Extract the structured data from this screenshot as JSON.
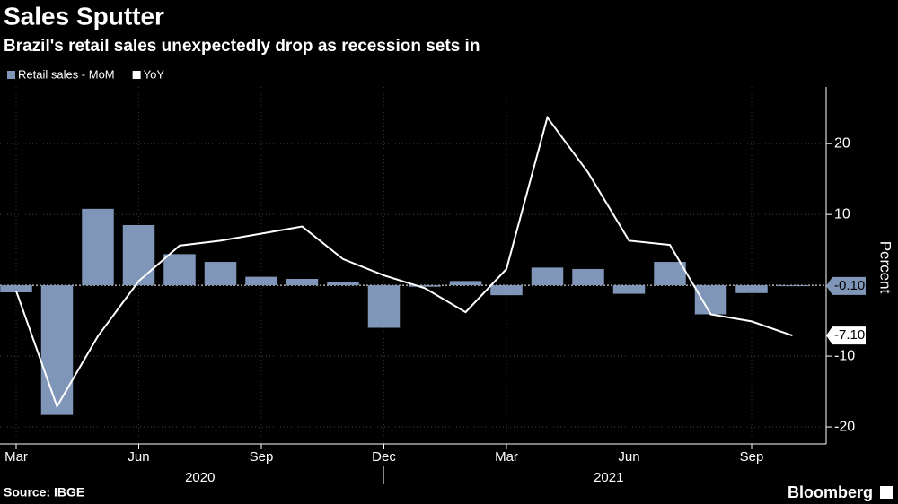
{
  "chart_data": {
    "type": "bar_line",
    "title": "Sales Sputter",
    "subtitle": "Brazil's retail sales unexpectedly drop as recession sets in",
    "y_label": "Percent",
    "source": "Source: IBGE",
    "brand": "Bloomberg",
    "categories": [
      "Mar",
      null,
      null,
      "Jun",
      null,
      null,
      "Sep",
      null,
      null,
      "Dec",
      null,
      null,
      "Mar",
      null,
      null,
      "Jun",
      null,
      null,
      "Sep",
      null
    ],
    "x_groups": [
      {
        "label": "2020",
        "count": 10
      },
      {
        "label": "2021",
        "count": 10
      }
    ],
    "series": [
      {
        "name": "Retail sales - MoM",
        "type": "bar",
        "color": "#8096b8",
        "values": [
          -1.0,
          -18.3,
          10.8,
          8.5,
          4.4,
          3.3,
          1.2,
          0.9,
          0.4,
          -6.0,
          -0.2,
          0.6,
          -1.4,
          2.5,
          2.3,
          -1.2,
          3.3,
          -4.1,
          -1.1,
          -0.1
        ],
        "value_labels": [
          null,
          null,
          null,
          null,
          null,
          null,
          null,
          null,
          null,
          null,
          null,
          null,
          null,
          null,
          null,
          null,
          null,
          null,
          null,
          "-0.10"
        ]
      },
      {
        "name": "YoY",
        "type": "line",
        "color": "#ffffff",
        "values": [
          -0.8,
          -17.1,
          -7.2,
          0.6,
          5.6,
          6.3,
          7.3,
          8.3,
          3.7,
          1.4,
          -0.4,
          -3.8,
          2.3,
          23.7,
          15.9,
          6.3,
          5.7,
          -4.1,
          -5.1,
          -7.1
        ],
        "value_labels": [
          null,
          null,
          null,
          null,
          null,
          null,
          null,
          null,
          null,
          null,
          null,
          null,
          null,
          null,
          null,
          null,
          null,
          null,
          null,
          "-7.10"
        ]
      }
    ],
    "ylim": [
      -22.4,
      28
    ],
    "yticks": [
      -20,
      -10,
      10,
      20
    ],
    "grid": true
  }
}
